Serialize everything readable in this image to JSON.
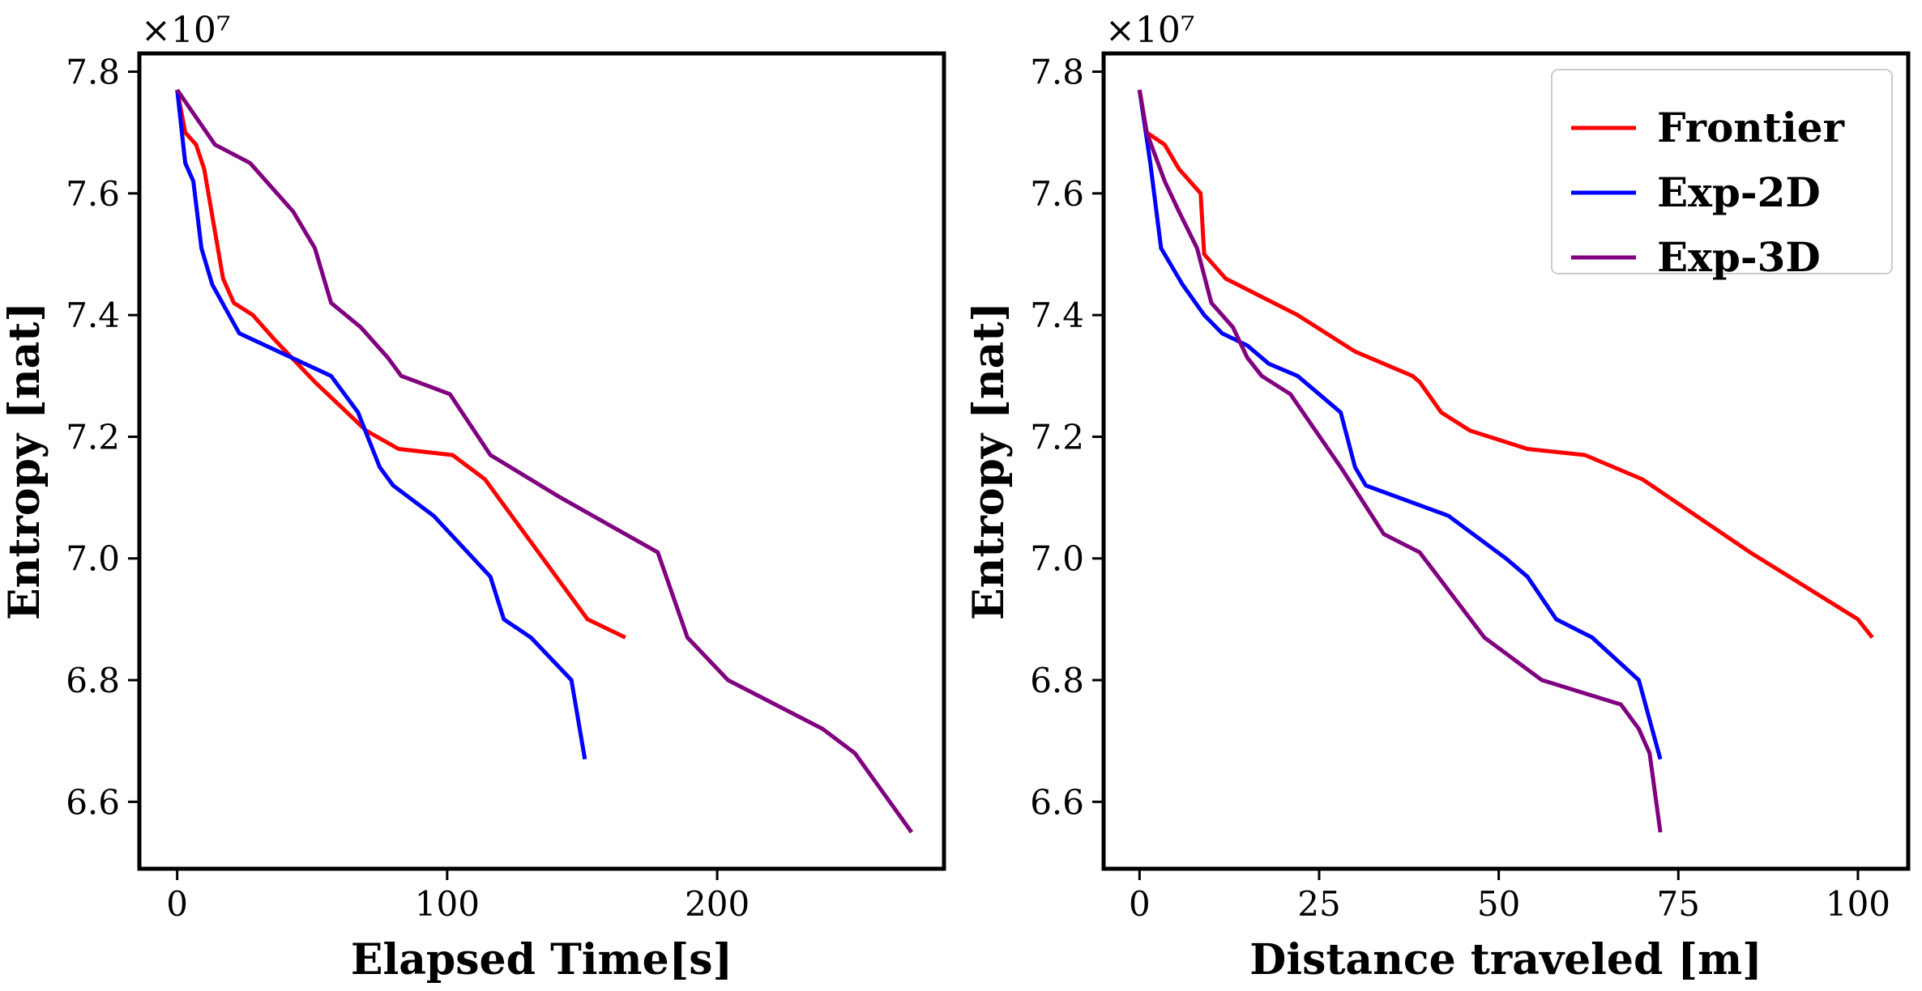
{
  "chart_data": [
    {
      "type": "line",
      "xlabel": "Elapsed Time[s]",
      "ylabel": "Entropy [nat]",
      "y_scale_label": "×10⁷",
      "y_multiplier": 10000000,
      "xlim": [
        -14,
        284
      ],
      "ylim": [
        6.49,
        7.83
      ],
      "xticks": [
        0,
        100,
        200
      ],
      "xtick_labels": [
        "0",
        "100",
        "200"
      ],
      "yticks": [
        6.6,
        6.8,
        7.0,
        7.2,
        7.4,
        7.6,
        7.8
      ],
      "ytick_labels": [
        "6.6",
        "6.8",
        "7.0",
        "7.2",
        "7.4",
        "7.6",
        "7.8"
      ],
      "grid": false,
      "legend": null,
      "series": [
        {
          "name": "Frontier",
          "color": "#ff0000",
          "points": [
            [
              0,
              7.77
            ],
            [
              3,
              7.7
            ],
            [
              7,
              7.68
            ],
            [
              10,
              7.64
            ],
            [
              17,
              7.46
            ],
            [
              21,
              7.42
            ],
            [
              28,
              7.4
            ],
            [
              36,
              7.36
            ],
            [
              51,
              7.29
            ],
            [
              70,
              7.21
            ],
            [
              82,
              7.18
            ],
            [
              102,
              7.17
            ],
            [
              114,
              7.13
            ],
            [
              152,
              6.9
            ],
            [
              166,
              6.87
            ]
          ]
        },
        {
          "name": "Exp-2D",
          "color": "#0000ff",
          "points": [
            [
              0,
              7.77
            ],
            [
              3,
              7.65
            ],
            [
              6,
              7.62
            ],
            [
              9,
              7.51
            ],
            [
              13,
              7.45
            ],
            [
              18,
              7.41
            ],
            [
              23,
              7.37
            ],
            [
              57,
              7.3
            ],
            [
              67,
              7.24
            ],
            [
              75,
              7.15
            ],
            [
              80,
              7.12
            ],
            [
              95,
              7.07
            ],
            [
              116,
              6.97
            ],
            [
              121,
              6.9
            ],
            [
              131,
              6.87
            ],
            [
              146,
              6.8
            ],
            [
              151,
              6.67
            ]
          ]
        },
        {
          "name": "Exp-3D",
          "color": "#800080",
          "points": [
            [
              0,
              7.77
            ],
            [
              14,
              7.68
            ],
            [
              27,
              7.65
            ],
            [
              43,
              7.57
            ],
            [
              51,
              7.51
            ],
            [
              57,
              7.42
            ],
            [
              68,
              7.38
            ],
            [
              78,
              7.33
            ],
            [
              83,
              7.3
            ],
            [
              101,
              7.27
            ],
            [
              116,
              7.17
            ],
            [
              142,
              7.1
            ],
            [
              166,
              7.04
            ],
            [
              178,
              7.01
            ],
            [
              189,
              6.87
            ],
            [
              204,
              6.8
            ],
            [
              239,
              6.72
            ],
            [
              251,
              6.68
            ],
            [
              272,
              6.55
            ]
          ]
        }
      ]
    },
    {
      "type": "line",
      "xlabel": "Distance traveled [m]",
      "ylabel": "Entropy [nat]",
      "y_scale_label": "×10⁷",
      "y_multiplier": 10000000,
      "xlim": [
        -5,
        107
      ],
      "ylim": [
        6.49,
        7.83
      ],
      "xticks": [
        0,
        25,
        50,
        75,
        100
      ],
      "xtick_labels": [
        "0",
        "25",
        "50",
        "75",
        "100"
      ],
      "yticks": [
        6.6,
        6.8,
        7.0,
        7.2,
        7.4,
        7.6,
        7.8
      ],
      "ytick_labels": [
        "6.6",
        "6.8",
        "7.0",
        "7.2",
        "7.4",
        "7.6",
        "7.8"
      ],
      "grid": false,
      "legend": "top-right",
      "series": [
        {
          "name": "Frontier",
          "color": "#ff0000",
          "points": [
            [
              0,
              7.77
            ],
            [
              1,
              7.7
            ],
            [
              3.5,
              7.68
            ],
            [
              5.5,
              7.64
            ],
            [
              8.5,
              7.6
            ],
            [
              9,
              7.5
            ],
            [
              12,
              7.46
            ],
            [
              17,
              7.43
            ],
            [
              22,
              7.4
            ],
            [
              30,
              7.34
            ],
            [
              38,
              7.3
            ],
            [
              39,
              7.29
            ],
            [
              42,
              7.24
            ],
            [
              46,
              7.21
            ],
            [
              54,
              7.18
            ],
            [
              62,
              7.17
            ],
            [
              70,
              7.13
            ],
            [
              85,
              7.01
            ],
            [
              100,
              6.9
            ],
            [
              102,
              6.87
            ]
          ]
        },
        {
          "name": "Exp-2D",
          "color": "#0000ff",
          "points": [
            [
              0,
              7.77
            ],
            [
              1.5,
              7.65
            ],
            [
              3,
              7.51
            ],
            [
              6,
              7.45
            ],
            [
              9,
              7.4
            ],
            [
              11.5,
              7.37
            ],
            [
              15,
              7.35
            ],
            [
              18,
              7.32
            ],
            [
              22,
              7.3
            ],
            [
              28,
              7.24
            ],
            [
              30,
              7.15
            ],
            [
              31.5,
              7.12
            ],
            [
              43,
              7.07
            ],
            [
              51,
              7.0
            ],
            [
              54,
              6.97
            ],
            [
              58,
              6.9
            ],
            [
              63,
              6.87
            ],
            [
              69.5,
              6.8
            ],
            [
              72.5,
              6.67
            ]
          ]
        },
        {
          "name": "Exp-3D",
          "color": "#800080",
          "points": [
            [
              0,
              7.77
            ],
            [
              1,
              7.7
            ],
            [
              3.5,
              7.62
            ],
            [
              5.5,
              7.57
            ],
            [
              8,
              7.51
            ],
            [
              10,
              7.42
            ],
            [
              13,
              7.38
            ],
            [
              15,
              7.33
            ],
            [
              17,
              7.3
            ],
            [
              21,
              7.27
            ],
            [
              28,
              7.15
            ],
            [
              34,
              7.04
            ],
            [
              39,
              7.01
            ],
            [
              48,
              6.87
            ],
            [
              56,
              6.8
            ],
            [
              67,
              6.76
            ],
            [
              69.5,
              6.72
            ],
            [
              71,
              6.68
            ],
            [
              72.5,
              6.55
            ]
          ]
        }
      ]
    }
  ]
}
